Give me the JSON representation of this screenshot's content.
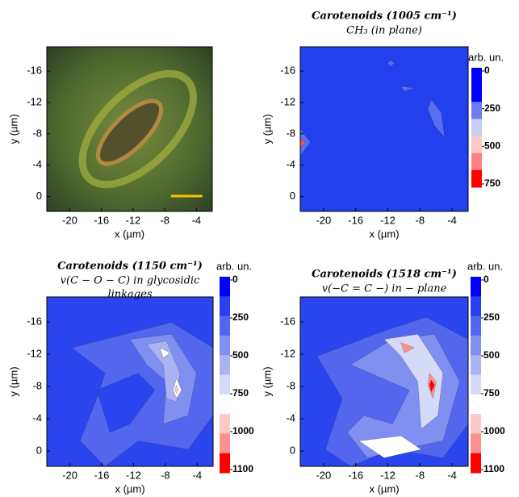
{
  "chart_data": [
    {
      "type": "image",
      "xlabel": "x (µm)",
      "ylabel": "y (µm)",
      "xlim": [
        -22.9,
        -2
      ],
      "xticks": [
        -20,
        -16,
        -12,
        -8,
        -4
      ],
      "ylim": [
        1.9,
        -19.1
      ],
      "yticks": [
        0,
        -4,
        -8,
        -12,
        -16
      ]
    },
    {
      "type": "contour",
      "title": "Carotenoids (1005 cm⁻¹)",
      "subtitle_lines": [
        "CH₃ (in plane)"
      ],
      "xlabel": "x (µm)",
      "ylabel": "y (µm)",
      "xlim": [
        -22.9,
        -2
      ],
      "xticks": [
        -20,
        -16,
        -12,
        -8,
        -4
      ],
      "ylim": [
        1.9,
        -19.1
      ],
      "yticks": [
        0,
        -4,
        -8,
        -12,
        -16
      ],
      "colorbar": {
        "label": "arb. un.",
        "ticks": [
          0,
          250,
          500,
          750
        ],
        "colors": [
          "#0000ff",
          "#0000ff",
          "#6f7bf0",
          "#c8cdf5",
          "#ffc8c8",
          "#ff8080",
          "#ff0000"
        ]
      }
    },
    {
      "type": "contour",
      "title": "Carotenoids (1150 cm⁻¹)",
      "subtitle_lines": [
        "v(C − O − C) in glycosidic",
        "linkages"
      ],
      "xlabel": "x (µm)",
      "ylabel": "y (µm)",
      "xlim": [
        -22.9,
        -2
      ],
      "xticks": [
        -20,
        -16,
        -12,
        -8,
        -4
      ],
      "ylim": [
        1.9,
        -19.1
      ],
      "yticks": [
        0,
        -4,
        -8,
        -12,
        -16
      ],
      "colorbar": {
        "label": "arb. un.",
        "ticks": [
          0,
          250,
          500,
          750,
          1000,
          1100
        ],
        "colors": [
          "#0000ff",
          "#2a40f0",
          "#5566ee",
          "#8090f0",
          "#aab4f4",
          "#d4daf8",
          "#ffffff",
          "#ffc8c8",
          "#ff9090",
          "#ff0000"
        ]
      }
    },
    {
      "type": "contour",
      "title": "Carotenoids (1518 cm⁻¹)",
      "subtitle_lines": [
        "v(−C = C −) in − plane"
      ],
      "xlabel": "x (µm)",
      "ylabel": "y (µm)",
      "xlim": [
        -22.9,
        -2
      ],
      "xticks": [
        -20,
        -16,
        -12,
        -8,
        -4
      ],
      "ylim": [
        1.9,
        -19.1
      ],
      "yticks": [
        0,
        -4,
        -8,
        -12,
        -16
      ],
      "colorbar": {
        "label": "arb. un.",
        "ticks": [
          0,
          250,
          500,
          750,
          1000,
          1100
        ],
        "colors": [
          "#0000ff",
          "#2a40f0",
          "#5566ee",
          "#8090f0",
          "#aab4f4",
          "#d4daf8",
          "#ffffff",
          "#ffc8c8",
          "#ff9090",
          "#ff0000"
        ]
      }
    }
  ]
}
